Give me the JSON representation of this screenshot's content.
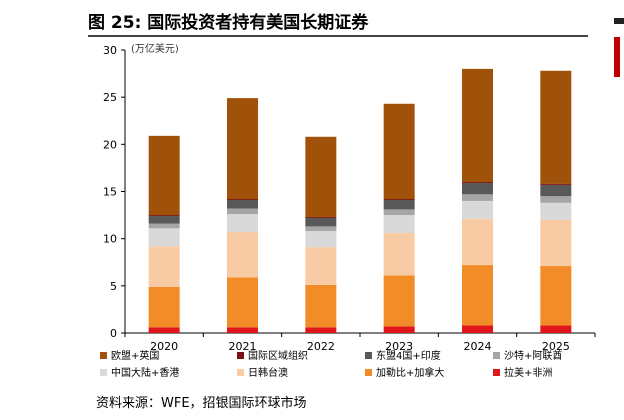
{
  "header": {
    "title": "图 25: 国际投资者持有美国长期证券"
  },
  "footer": {
    "source": "资料来源：WFE，招银国际环球市场"
  },
  "chart_data": {
    "type": "bar",
    "stacked": true,
    "unit_label": "(万亿美元)",
    "categories": [
      "2020",
      "2021",
      "2022",
      "2023",
      "2024",
      "2025"
    ],
    "ylim": [
      0,
      30
    ],
    "yticks": [
      0,
      5,
      10,
      15,
      20,
      25,
      30
    ],
    "grid": false,
    "legend_position": "bottom",
    "series": [
      {
        "name": "拉美+非洲",
        "color": "#e0161b",
        "values": [
          0.6,
          0.6,
          0.6,
          0.7,
          0.8,
          0.8
        ]
      },
      {
        "name": "加勒比+加拿大",
        "color": "#f28c28",
        "values": [
          4.3,
          5.3,
          4.5,
          5.4,
          6.4,
          6.3
        ]
      },
      {
        "name": "日韩台澳",
        "color": "#f9cba4",
        "values": [
          4.3,
          4.8,
          4.0,
          4.5,
          4.9,
          4.9
        ]
      },
      {
        "name": "中国大陆+香港",
        "color": "#d9d9d9",
        "values": [
          1.9,
          1.9,
          1.7,
          1.9,
          1.9,
          1.8
        ]
      },
      {
        "name": "沙特+阿联酋",
        "color": "#a6a6a6",
        "values": [
          0.5,
          0.6,
          0.5,
          0.6,
          0.7,
          0.7
        ]
      },
      {
        "name": "东盟4国+印度",
        "color": "#595959",
        "values": [
          0.8,
          0.9,
          0.9,
          1.0,
          1.2,
          1.2
        ]
      },
      {
        "name": "国际区域组织",
        "color": "#7b1010",
        "values": [
          0.1,
          0.1,
          0.1,
          0.1,
          0.1,
          0.1
        ]
      },
      {
        "name": "欧盟+英国",
        "color": "#a0520a",
        "values": [
          8.4,
          10.7,
          8.5,
          10.1,
          12.0,
          12.0
        ]
      }
    ],
    "legend_order": [
      "欧盟+英国",
      "国际区域组织",
      "东盟4国+印度",
      "沙特+阿联酋",
      "中国大陆+香港",
      "日韩台澳",
      "加勒比+加拿大",
      "拉美+非洲"
    ]
  }
}
